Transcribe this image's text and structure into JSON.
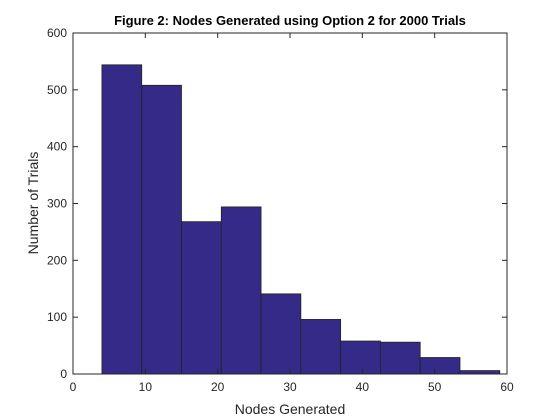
{
  "chart_data": {
    "type": "bar",
    "title": "Figure 2: Nodes Generated using Option 2 for 2000 Trials",
    "xlabel": "Nodes Generated",
    "ylabel": "Number of Trials",
    "xlim": [
      0,
      60
    ],
    "ylim": [
      0,
      600
    ],
    "xticks": [
      0,
      10,
      20,
      30,
      40,
      50,
      60
    ],
    "yticks": [
      0,
      100,
      200,
      300,
      400,
      500,
      600
    ],
    "bin_edges": [
      4,
      9.5,
      15,
      20.5,
      26,
      31.5,
      37,
      42.5,
      48,
      53.5,
      59
    ],
    "values": [
      544,
      508,
      268,
      294,
      141,
      96,
      58,
      56,
      29,
      6
    ],
    "bar_color": "#352A87",
    "edge_color": "#222222",
    "grid": false,
    "box": true
  }
}
